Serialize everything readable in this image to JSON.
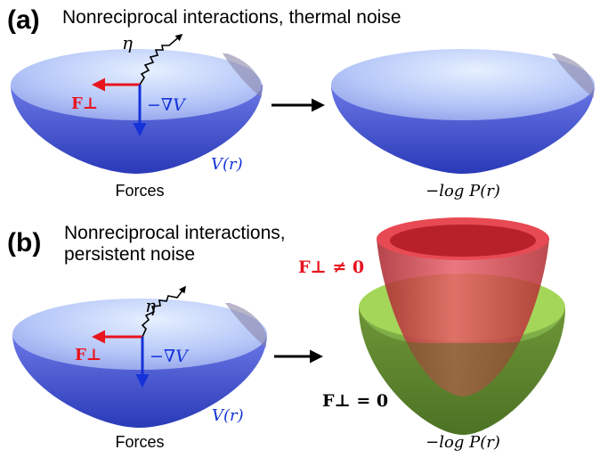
{
  "panels": [
    {
      "label": "(a)",
      "title_lines": [
        "Nonreciprocal interactions, thermal noise"
      ],
      "left": {
        "noise": "η",
        "perp_force": "F⊥",
        "gradient_force": "−∇V",
        "potential": "V(r)",
        "caption": "Forces"
      },
      "right": {
        "caption": "−log P(r)"
      }
    },
    {
      "label": "(b)",
      "title_lines": [
        "Nonreciprocal interactions,",
        "persistent noise"
      ],
      "left": {
        "noise": "η",
        "perp_force": "F⊥",
        "gradient_force": "−∇V",
        "potential": "V(r)",
        "caption": "Forces"
      },
      "right": {
        "nonzero_label": "F⊥ ≠ 0",
        "zero_label": "F⊥ = 0",
        "caption": "−log P(r)"
      }
    }
  ]
}
